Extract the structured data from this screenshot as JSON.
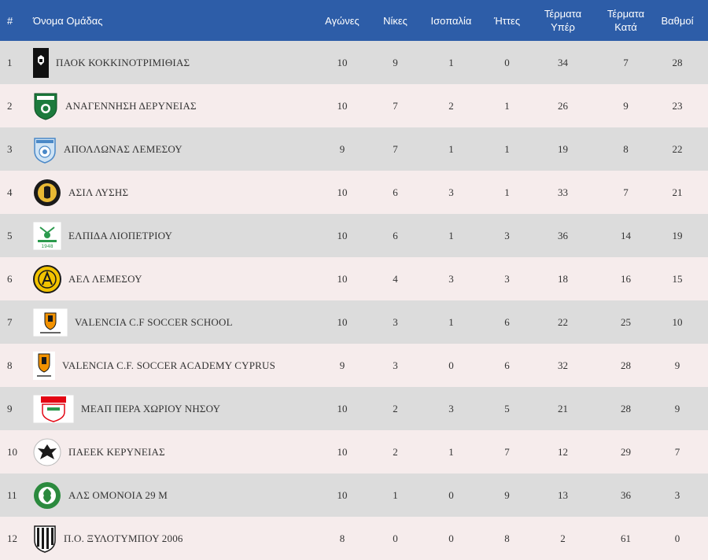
{
  "table": {
    "headers": {
      "pos": "#",
      "team": "Όνομα Ομάδας",
      "played": "Αγώνες",
      "wins": "Νίκες",
      "draws": "Ισοπαλία",
      "losses": "Ήττες",
      "gf_line1": "Τέρματα",
      "gf_line2": "Υπέρ",
      "ga_line1": "Τέρματα",
      "ga_line2": "Κατά",
      "points": "Βαθμοί"
    },
    "rows": [
      {
        "pos": "1",
        "team": "ΠΑΟΚ ΚΟΚΚΙΝΟΤΡΙΜΙΘΙΑΣ",
        "logo": "paok-logo",
        "played": "10",
        "wins": "9",
        "draws": "1",
        "losses": "0",
        "gf": "34",
        "ga": "7",
        "points": "28"
      },
      {
        "pos": "2",
        "team": "ΑΝΑΓΕΝΝΗΣΗ ΔΕΡΥΝΕΙΑΣ",
        "logo": "anagennisi-logo",
        "played": "10",
        "wins": "7",
        "draws": "2",
        "losses": "1",
        "gf": "26",
        "ga": "9",
        "points": "23"
      },
      {
        "pos": "3",
        "team": "ΑΠΟΛΛΩΝΑΣ ΛΕΜΕΣΟΥ",
        "logo": "apollon-logo",
        "played": "9",
        "wins": "7",
        "draws": "1",
        "losses": "1",
        "gf": "19",
        "ga": "8",
        "points": "22"
      },
      {
        "pos": "4",
        "team": "ΑΣΙΛ ΛΥΣΗΣ",
        "logo": "asil-logo",
        "played": "10",
        "wins": "6",
        "draws": "3",
        "losses": "1",
        "gf": "33",
        "ga": "7",
        "points": "21"
      },
      {
        "pos": "5",
        "team": "ΕΛΠΙΔΑ ΛΙΟΠΕΤΡΙΟΥ",
        "logo": "elpida-logo",
        "played": "10",
        "wins": "6",
        "draws": "1",
        "losses": "3",
        "gf": "36",
        "ga": "14",
        "points": "19"
      },
      {
        "pos": "6",
        "team": "ΑΕΛ ΛΕΜΕΣΟΥ",
        "logo": "ael-logo",
        "played": "10",
        "wins": "4",
        "draws": "3",
        "losses": "3",
        "gf": "18",
        "ga": "16",
        "points": "15"
      },
      {
        "pos": "7",
        "team": "VALENCIA C.F SOCCER SCHOOL",
        "logo": "valencia-school-logo",
        "played": "10",
        "wins": "3",
        "draws": "1",
        "losses": "6",
        "gf": "22",
        "ga": "25",
        "points": "10"
      },
      {
        "pos": "8",
        "team": "VALENCIA C.F. SOCCER ACADEMY CYPRUS",
        "logo": "valencia-academy-logo",
        "played": "9",
        "wins": "3",
        "draws": "0",
        "losses": "6",
        "gf": "32",
        "ga": "28",
        "points": "9"
      },
      {
        "pos": "9",
        "team": "ΜΕΑΠ ΠΕΡΑ ΧΩΡΙΟΥ ΝΗΣΟΥ",
        "logo": "meap-logo",
        "played": "10",
        "wins": "2",
        "draws": "3",
        "losses": "5",
        "gf": "21",
        "ga": "28",
        "points": "9"
      },
      {
        "pos": "10",
        "team": "ΠΑΕΕΚ ΚΕΡΥΝΕΙΑΣ",
        "logo": "paeek-logo",
        "played": "10",
        "wins": "2",
        "draws": "1",
        "losses": "7",
        "gf": "12",
        "ga": "29",
        "points": "7"
      },
      {
        "pos": "11",
        "team": "ΑΛΣ ΟΜΟΝΟΙΑ 29 Μ",
        "logo": "omonia-logo",
        "played": "10",
        "wins": "1",
        "draws": "0",
        "losses": "9",
        "gf": "13",
        "ga": "36",
        "points": "3"
      },
      {
        "pos": "12",
        "team": "Π.Ο. ΞΥΛΟΤΥΜΠΟΥ 2006",
        "logo": "xylotymbou-logo",
        "played": "8",
        "wins": "0",
        "draws": "0",
        "losses": "8",
        "gf": "2",
        "ga": "61",
        "points": "0"
      }
    ]
  },
  "colors": {
    "header_bg": "#2d5da8",
    "row_odd": "#dcdcdc",
    "row_even": "#f6ecec"
  }
}
